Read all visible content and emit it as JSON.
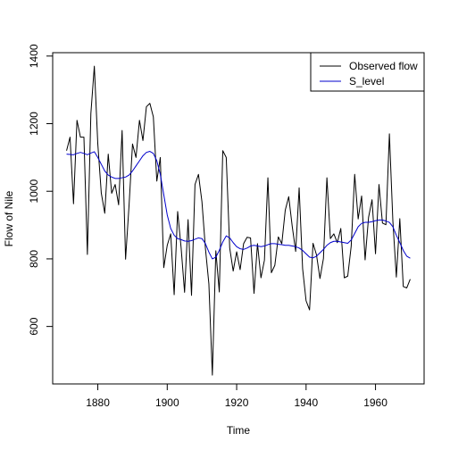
{
  "chart_data": {
    "type": "line",
    "title": "",
    "xlabel": "Time",
    "ylabel": "Flow of Nile",
    "xlim": [
      1867,
      1974
    ],
    "ylim": [
      430,
      1410
    ],
    "x_ticks": [
      1880,
      1900,
      1920,
      1940,
      1960
    ],
    "y_ticks": [
      600,
      800,
      1000,
      1200,
      1400
    ],
    "grid": false,
    "legend_position": "top-right",
    "x": [
      1871,
      1872,
      1873,
      1874,
      1875,
      1876,
      1877,
      1878,
      1879,
      1880,
      1881,
      1882,
      1883,
      1884,
      1885,
      1886,
      1887,
      1888,
      1889,
      1890,
      1891,
      1892,
      1893,
      1894,
      1895,
      1896,
      1897,
      1898,
      1899,
      1900,
      1901,
      1902,
      1903,
      1904,
      1905,
      1906,
      1907,
      1908,
      1909,
      1910,
      1911,
      1912,
      1913,
      1914,
      1915,
      1916,
      1917,
      1918,
      1919,
      1920,
      1921,
      1922,
      1923,
      1924,
      1925,
      1926,
      1927,
      1928,
      1929,
      1930,
      1931,
      1932,
      1933,
      1934,
      1935,
      1936,
      1937,
      1938,
      1939,
      1940,
      1941,
      1942,
      1943,
      1944,
      1945,
      1946,
      1947,
      1948,
      1949,
      1950,
      1951,
      1952,
      1953,
      1954,
      1955,
      1956,
      1957,
      1958,
      1959,
      1960,
      1961,
      1962,
      1963,
      1964,
      1965,
      1966,
      1967,
      1968,
      1969,
      1970
    ],
    "series": [
      {
        "name": "Observed flow",
        "color": "#000000",
        "values": [
          1120,
          1160,
          963,
          1210,
          1160,
          1160,
          813,
          1230,
          1370,
          1140,
          995,
          935,
          1110,
          994,
          1020,
          960,
          1180,
          799,
          958,
          1140,
          1100,
          1210,
          1150,
          1250,
          1260,
          1220,
          1030,
          1100,
          774,
          840,
          874,
          694,
          940,
          833,
          701,
          916,
          692,
          1020,
          1050,
          969,
          831,
          726,
          456,
          824,
          702,
          1120,
          1100,
          832,
          764,
          821,
          768,
          845,
          864,
          862,
          698,
          845,
          744,
          796,
          1040,
          759,
          781,
          865,
          845,
          944,
          984,
          897,
          822,
          1010,
          771,
          676,
          649,
          846,
          812,
          742,
          801,
          1040,
          860,
          874,
          848,
          890,
          744,
          749,
          838,
          1050,
          918,
          986,
          797,
          923,
          975,
          815,
          1020,
          906,
          901,
          1170,
          912,
          746,
          919,
          718,
          714,
          740
        ]
      },
      {
        "name": "S_level",
        "color": "#0000cc",
        "values": [
          1110,
          1109,
          1108,
          1112,
          1115,
          1112,
          1108,
          1113,
          1117,
          1100,
          1080,
          1060,
          1048,
          1042,
          1038,
          1038,
          1040,
          1042,
          1048,
          1060,
          1075,
          1090,
          1105,
          1115,
          1118,
          1112,
          1090,
          1050,
          990,
          930,
          890,
          870,
          860,
          857,
          853,
          852,
          854,
          858,
          862,
          860,
          845,
          820,
          800,
          805,
          825,
          850,
          868,
          862,
          848,
          836,
          830,
          828,
          832,
          838,
          840,
          838,
          836,
          838,
          842,
          845,
          845,
          843,
          842,
          840,
          840,
          838,
          836,
          832,
          825,
          815,
          805,
          803,
          808,
          818,
          828,
          840,
          848,
          852,
          852,
          850,
          848,
          846,
          856,
          875,
          895,
          905,
          908,
          908,
          910,
          913,
          915,
          915,
          912,
          908,
          895,
          870,
          848,
          825,
          808,
          802
        ]
      }
    ]
  }
}
